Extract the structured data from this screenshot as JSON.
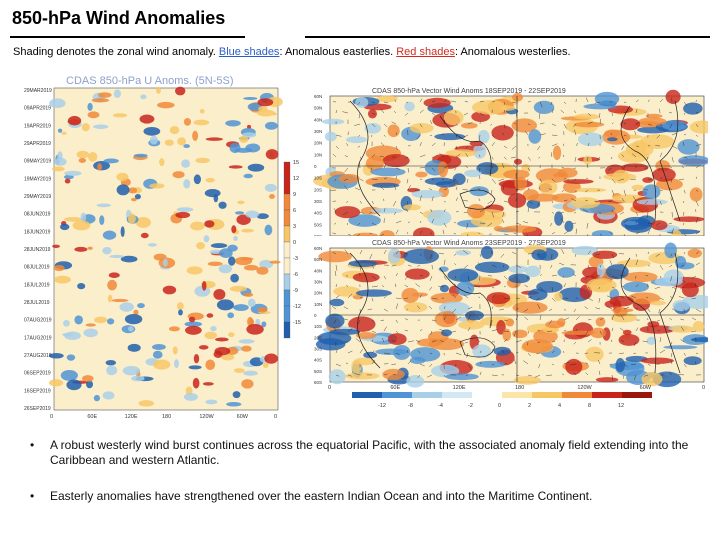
{
  "slide": {
    "title": "850-h​Pa Wind Anomalies",
    "subtitle_lead": "Shading denotes the zonal wind anomaly.",
    "blue_label": "Blue shades",
    "blue_text": ": Anomalous easterlies.",
    "red_label": "Red shades",
    "red_text": ": Anomalous westerlies."
  },
  "hovmoller": {
    "title": "CDAS 850-hPa U Anoms. (5N-5S)",
    "dates": [
      "29MAR2019",
      "09APR2019",
      "19APR2019",
      "29APR2019",
      "09MAY2019",
      "19MAY2019",
      "29MAY2019",
      "08JUN2019",
      "18JUN2019",
      "28JUN2019",
      "08JUL2019",
      "18JUL2019",
      "28JUL2019",
      "07AUG2019",
      "17AUG2019",
      "27AUG2019",
      "06SEP2019",
      "16SEP2019",
      "26SEP2019"
    ],
    "x_ticks": [
      "0",
      "60E",
      "120E",
      "180",
      "120W",
      "60W",
      "0"
    ],
    "colorbar": [
      "-15",
      "-12",
      "-9",
      "-6",
      "-3",
      "0",
      "3",
      "6",
      "9",
      "12",
      "15"
    ]
  },
  "maps": [
    {
      "title": "CDAS 850-hPa Vector Wind Anoms  18SEP2019 - 22SEP2019"
    },
    {
      "title": "CDAS 850-hPa Vector Wind Anoms  23SEP2019 - 27SEP2019"
    }
  ],
  "map_axes": {
    "lat_ticks": [
      "60N",
      "50N",
      "40N",
      "30N",
      "20N",
      "10N",
      "0",
      "10S",
      "20S",
      "30S",
      "40S",
      "50S",
      "60S"
    ],
    "lon_ticks": [
      "0",
      "60E",
      "120E",
      "180",
      "120W",
      "60W",
      "0"
    ]
  },
  "map_colorbar": [
    "-12",
    "-8",
    "-4",
    "-2",
    "0",
    "2",
    "4",
    "8",
    "12"
  ],
  "bullets": [
    "A robust westerly wind burst continues across the equatorial Pacific, with the associated anomaly field extending into the Caribbean and western Atlantic.",
    "Easterly anomalies have strengthened over the eastern Indian Ocean and into the Maritime Continent."
  ],
  "colors": {
    "strong_west": "#c8241c",
    "west": "#f08a3a",
    "weak_west": "#f7c766",
    "neutral": "#fbeecb",
    "weak_east": "#a9cfe8",
    "east": "#4f94d4",
    "strong_east": "#1f5fae"
  }
}
